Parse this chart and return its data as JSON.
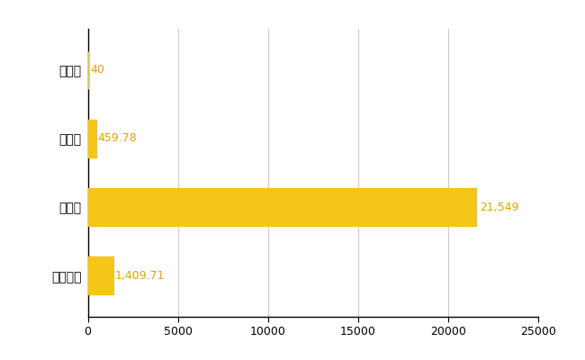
{
  "categories": [
    "古平町",
    "県平均",
    "県最大",
    "全国平均"
  ],
  "values": [
    40,
    459.78,
    21549,
    1409.71
  ],
  "labels": [
    "40",
    "459.78",
    "21,549",
    "1,409.71"
  ],
  "bar_color": "#F5C518",
  "bar_height": 0.55,
  "xlim": [
    0,
    25000
  ],
  "xticks": [
    0,
    5000,
    10000,
    15000,
    20000,
    25000
  ],
  "xtick_labels": [
    "0",
    "5000",
    "10000",
    "15000",
    "20000",
    "25000"
  ],
  "grid_color": "#cccccc",
  "background_color": "#ffffff",
  "label_color": "#E8A000",
  "label_fontsize": 9,
  "tick_fontsize": 9,
  "ytick_fontsize": 10
}
